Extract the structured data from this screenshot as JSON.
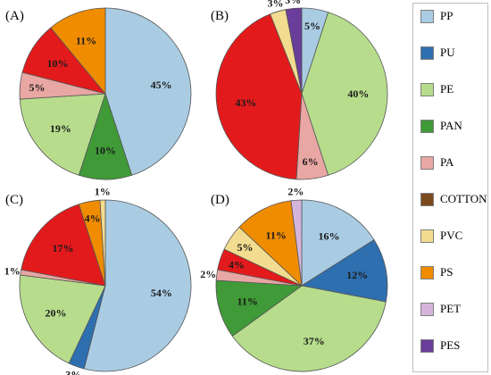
{
  "chart_data": [
    {
      "type": "pie",
      "panel": "(A)",
      "categories": [
        "PP",
        "PAN",
        "PE",
        "PA",
        "PET",
        "PES",
        "PU",
        "COTTON",
        "PVC",
        "PS"
      ],
      "values": [
        45,
        10,
        19,
        5,
        0,
        0,
        0,
        0,
        0,
        11
      ],
      "slices": [
        {
          "category": "PP",
          "value": 45,
          "label": "45%"
        },
        {
          "category": "PAN",
          "value": 10,
          "label": "10%"
        },
        {
          "category": "PE",
          "value": 19,
          "label": "19%"
        },
        {
          "category": "PA",
          "value": 5,
          "label": "5%"
        },
        {
          "category": "red",
          "value": 10,
          "label": "10%"
        },
        {
          "category": "PS",
          "value": 11,
          "label": "11%"
        }
      ]
    },
    {
      "type": "pie",
      "panel": "(B)",
      "slices": [
        {
          "category": "PP",
          "value": 5,
          "label": "5%"
        },
        {
          "category": "PE",
          "value": 40,
          "label": "40%"
        },
        {
          "category": "PA",
          "value": 6,
          "label": "6%"
        },
        {
          "category": "red",
          "value": 43,
          "label": "43%"
        },
        {
          "category": "PVC",
          "value": 3,
          "label": "3%"
        },
        {
          "category": "PES",
          "value": 3,
          "label": "3%"
        }
      ]
    },
    {
      "type": "pie",
      "panel": "(C)",
      "slices": [
        {
          "category": "PP",
          "value": 54,
          "label": "54%"
        },
        {
          "category": "PU",
          "value": 3,
          "label": "3%"
        },
        {
          "category": "PE",
          "value": 20,
          "label": "20%"
        },
        {
          "category": "PA",
          "value": 1,
          "label": "1%"
        },
        {
          "category": "red",
          "value": 17,
          "label": "17%"
        },
        {
          "category": "PS",
          "value": 4,
          "label": "4%"
        },
        {
          "category": "PVC",
          "value": 1,
          "label": "1%"
        }
      ]
    },
    {
      "type": "pie",
      "panel": "(D)",
      "slices": [
        {
          "category": "PP",
          "value": 16,
          "label": "16%"
        },
        {
          "category": "PU",
          "value": 12,
          "label": "12%"
        },
        {
          "category": "PE",
          "value": 37,
          "label": "37%"
        },
        {
          "category": "PAN",
          "value": 11,
          "label": "11%"
        },
        {
          "category": "PA",
          "value": 2,
          "label": "2%"
        },
        {
          "category": "red",
          "value": 4,
          "label": "4%"
        },
        {
          "category": "PVC",
          "value": 5,
          "label": "5%"
        },
        {
          "category": "PS",
          "value": 11,
          "label": "11%"
        },
        {
          "category": "PET",
          "value": 2,
          "label": "2%"
        }
      ]
    }
  ],
  "legend": [
    {
      "label": "PP",
      "color": "#a9cce3"
    },
    {
      "label": "PU",
      "color": "#2e6fb0"
    },
    {
      "label": "PE",
      "color": "#b7dd8c"
    },
    {
      "label": "PAN",
      "color": "#3f9a37"
    },
    {
      "label": "PA",
      "color": "#e8a7a3"
    },
    {
      "label": "COTTON",
      "color": "#7a4a1e"
    },
    {
      "label": "PVC",
      "color": "#f2dc8f"
    },
    {
      "label": "PS",
      "color": "#f08c00"
    },
    {
      "label": "PET",
      "color": "#d5b4dc"
    },
    {
      "label": "PES",
      "color": "#6a3d9a"
    }
  ],
  "colors": {
    "PP": "#a9cce3",
    "PU": "#2e6fb0",
    "PE": "#b7dd8c",
    "PAN": "#3f9a37",
    "PA": "#e8a7a3",
    "COTTON": "#7a4a1e",
    "PVC": "#f2dc8f",
    "PS": "#f08c00",
    "PET": "#d5b4dc",
    "PES": "#6a3d9a",
    "red": "#e31a1c"
  }
}
